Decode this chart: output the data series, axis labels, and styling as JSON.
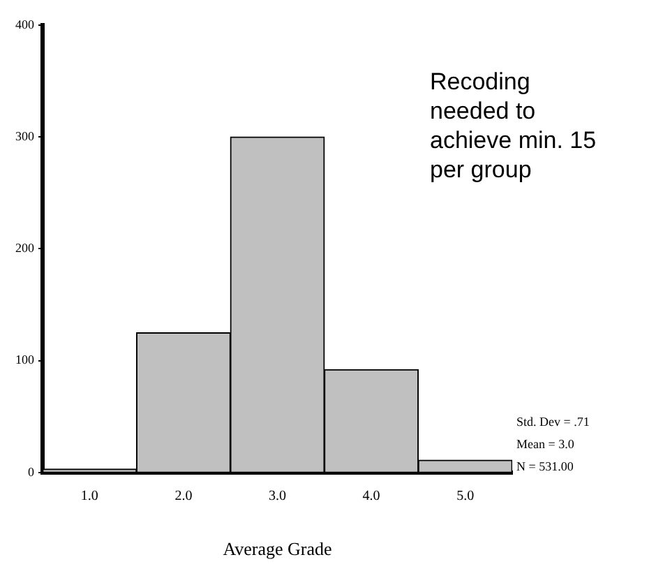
{
  "chart_data": {
    "type": "histogram",
    "xlabel": "Average Grade",
    "bins": [
      0.5,
      1.5,
      2.5,
      3.5,
      4.5,
      5.5
    ],
    "values": [
      3,
      125,
      300,
      92,
      11
    ],
    "color": "#c0c0c0",
    "xlim": [
      0.5,
      5.5
    ],
    "xticks": [
      {
        "value": 1,
        "label": "1.0"
      },
      {
        "value": 2,
        "label": "2.0"
      },
      {
        "value": 3,
        "label": "3.0"
      },
      {
        "value": 4,
        "label": "4.0"
      },
      {
        "value": 5,
        "label": "5.0"
      }
    ],
    "ylim": [
      0,
      400
    ],
    "yticks": [
      0,
      100,
      200,
      300,
      400
    ],
    "grid": false,
    "annotations": [
      "Recoding needed to achieve min. 15 per group",
      "Std. Dev = .71",
      "Mean = 3.0",
      "N = 531.00"
    ]
  }
}
